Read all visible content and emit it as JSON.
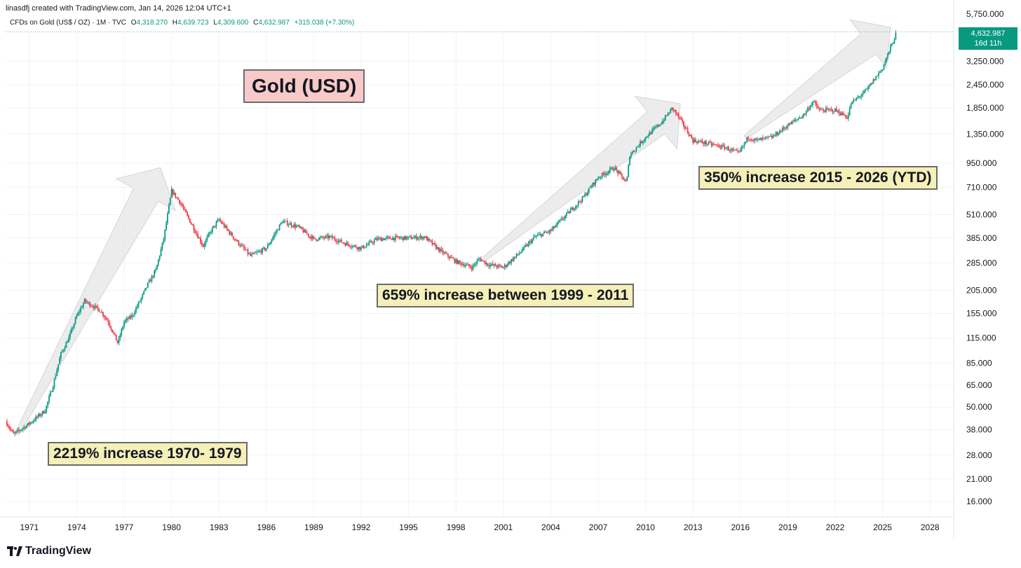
{
  "header": {
    "caption": "linasdfj created with TradingView.com, Jan 14, 2026 12:04 UTC+1",
    "symbol": "CFDs on Gold (US$ / OZ) · 1M · TVC",
    "open_label": "O",
    "open_value": "4,318.270",
    "high_label": "H",
    "high_value": "4,639.723",
    "low_label": "L",
    "low_value": "4,309.600",
    "close_label": "C",
    "close_value": "4,632.987",
    "change": "+315.038 (+7.30%)"
  },
  "price_tag": {
    "price": "4,632.987",
    "countdown": "16d 11h"
  },
  "title": "Gold (USD)",
  "annotations": {
    "a1970": "2219% increase 1970- 1979",
    "a1999": "659% increase between 1999 - 2011",
    "a2015": "350% increase 2015 - 2026 (YTD)"
  },
  "footer": {
    "brand": "TradingView"
  },
  "colors": {
    "up": "#089981",
    "down": "#f23645",
    "grid": "#f0f3fa",
    "arrow": "#e6e6e6"
  },
  "chart_data": {
    "type": "line",
    "title": "Gold (USD)",
    "subtitle": "CFDs on Gold (US$ / OZ) · 1M · TVC",
    "yscale": "log",
    "ylim": [
      12,
      5750
    ],
    "xlim": [
      1969.5,
      2029.5
    ],
    "y_ticks": [
      5750,
      3250,
      2450,
      1850,
      1350,
      950,
      710,
      510,
      385,
      285,
      205,
      155,
      115,
      85,
      65,
      50,
      38,
      28,
      21,
      16
    ],
    "y_tick_labels": [
      "5,750.000",
      "3,250.000",
      "2,450.000",
      "1,850.000",
      "1,350.000",
      "950.000",
      "710.000",
      "510.000",
      "385.000",
      "285.000",
      "205.000",
      "155.000",
      "115.000",
      "85.000",
      "65.000",
      "50.000",
      "38.000",
      "28.000",
      "21.000",
      "16.000"
    ],
    "x_ticks": [
      1971,
      1974,
      1977,
      1980,
      1983,
      1986,
      1989,
      1992,
      1995,
      1998,
      2001,
      2004,
      2007,
      2010,
      2013,
      2016,
      2019,
      2022,
      2025,
      2028
    ],
    "series": [
      {
        "name": "Gold price (USD/oz)",
        "x": [
          1969.5,
          1970,
          1971,
          1972,
          1972.5,
          1973,
          1973.5,
          1974,
          1974.5,
          1975,
          1975.5,
          1976,
          1976.6,
          1977,
          1977.5,
          1978,
          1978.5,
          1979,
          1979.5,
          1980,
          1980.5,
          1981,
          1982,
          1982.5,
          1983,
          1984,
          1985,
          1986,
          1987,
          1988,
          1989,
          1990,
          1991,
          1992,
          1993,
          1994,
          1995,
          1996,
          1997,
          1998,
          1999,
          1999.5,
          2000,
          2001,
          2002,
          2003,
          2004,
          2005,
          2006,
          2007,
          2008,
          2008.8,
          2009,
          2010,
          2011,
          2011.7,
          2012,
          2013,
          2014,
          2015,
          2015.9,
          2016.5,
          2017,
          2018,
          2019,
          2020,
          2020.6,
          2021,
          2022,
          2022.8,
          2023,
          2024,
          2025,
          2025.9
        ],
        "values": [
          42,
          36,
          41,
          48,
          65,
          95,
          115,
          150,
          180,
          170,
          160,
          140,
          108,
          140,
          150,
          180,
          220,
          260,
          380,
          680,
          600,
          500,
          350,
          420,
          480,
          380,
          310,
          340,
          470,
          440,
          380,
          390,
          360,
          340,
          380,
          385,
          385,
          390,
          330,
          290,
          270,
          300,
          280,
          270,
          320,
          390,
          420,
          510,
          620,
          800,
          900,
          750,
          1050,
          1300,
          1550,
          1850,
          1700,
          1250,
          1200,
          1150,
          1070,
          1300,
          1250,
          1300,
          1500,
          1700,
          2000,
          1800,
          1800,
          1650,
          1950,
          2300,
          3000,
          4633
        ]
      }
    ],
    "last_price": 4632.987,
    "annotations": [
      "2219% increase 1970- 1979",
      "659% increase between 1999 - 2011",
      "350% increase 2015 - 2026 (YTD)"
    ]
  }
}
